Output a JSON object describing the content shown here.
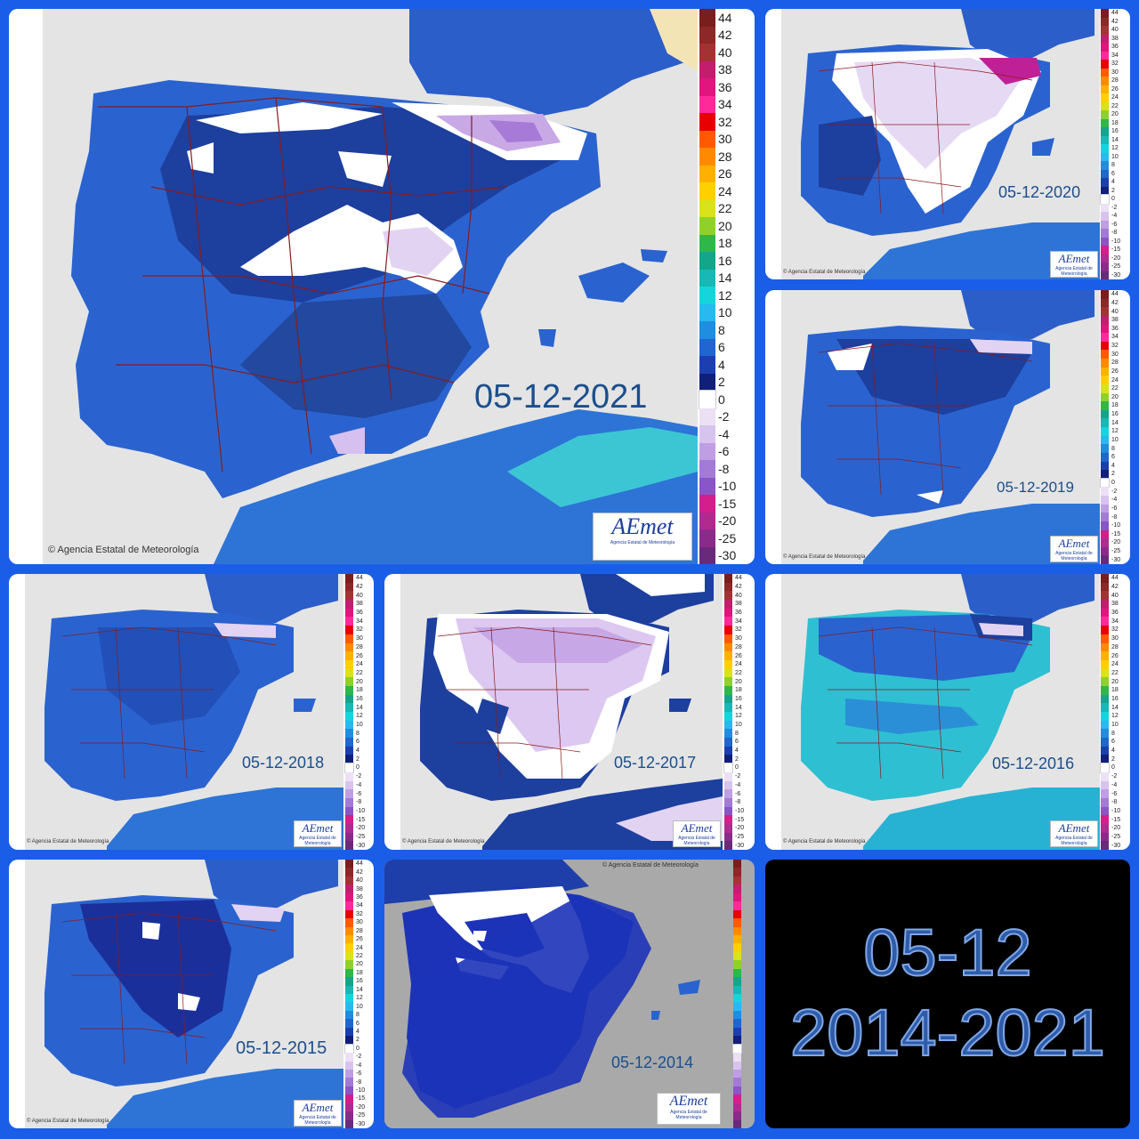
{
  "credit": "© Agencia Estatal de Meteorología",
  "logo": {
    "text": "AEmet",
    "sub": "Agencia Estatal de Meteorología"
  },
  "legend_labels": [
    "44",
    "42",
    "40",
    "38",
    "36",
    "34",
    "32",
    "30",
    "28",
    "26",
    "24",
    "22",
    "20",
    "18",
    "16",
    "14",
    "12",
    "10",
    "8",
    "6",
    "4",
    "2",
    "0",
    "-2",
    "-4",
    "-6",
    "-8",
    "-10",
    "-15",
    "-20",
    "-25",
    "-30"
  ],
  "legend_colors": [
    "#7a1d1d",
    "#8e2727",
    "#a33232",
    "#c21e6d",
    "#e0157e",
    "#ff2a9a",
    "#e80000",
    "#ff5a00",
    "#ff8a00",
    "#ffb000",
    "#ffd000",
    "#d9e21a",
    "#8fd12a",
    "#2fb84a",
    "#14a58a",
    "#17b8b5",
    "#16d4dc",
    "#27b9f0",
    "#1f8ee0",
    "#1f66d0",
    "#1b3fb0",
    "#10207a",
    "#ffffff",
    "#ece0f5",
    "#d8c3ee",
    "#bf9ee3",
    "#a37ad6",
    "#8a55c7",
    "#d41e8c",
    "#b12a8e",
    "#8a2b8a",
    "#6a2a7a"
  ],
  "maps": [
    {
      "id": "2021",
      "date": "05-12-2021"
    },
    {
      "id": "2020",
      "date": "05-12-2020"
    },
    {
      "id": "2019",
      "date": "05-12-2019"
    },
    {
      "id": "2018",
      "date": "05-12-2018"
    },
    {
      "id": "2017",
      "date": "05-12-2017"
    },
    {
      "id": "2016",
      "date": "05-12-2016"
    },
    {
      "id": "2015",
      "date": "05-12-2015"
    },
    {
      "id": "2014",
      "date": "05-12-2014"
    }
  ],
  "title": {
    "line1": "05-12",
    "line2": "2014-2021"
  }
}
